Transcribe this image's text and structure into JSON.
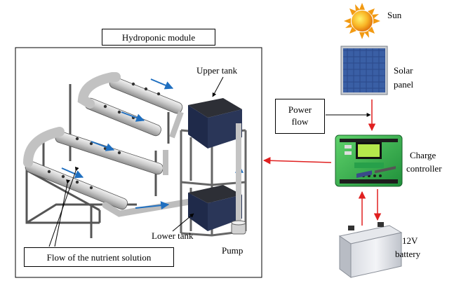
{
  "labels": {
    "module_title": "Hydroponic module",
    "upper_tank": "Upper tank",
    "lower_tank": "Lower tank",
    "pump": "Pump",
    "flow": "Flow of the nutrient solution",
    "sun": "Sun",
    "solar_panel_line1": "Solar",
    "solar_panel_line2": "panel",
    "power_flow_line1": "Power",
    "power_flow_line2": "flow",
    "charge_controller_line1": "Charge",
    "charge_controller_line2": "controller",
    "battery_line1": "12V",
    "battery_line2": "battery"
  },
  "colors": {
    "power_arrow": "#e02020",
    "flow_arrow": "#1f6fc0",
    "sun": "#f7a21b",
    "panel": "#25407a",
    "controller": "#2fb24a",
    "tank": "#1f2a4a"
  }
}
